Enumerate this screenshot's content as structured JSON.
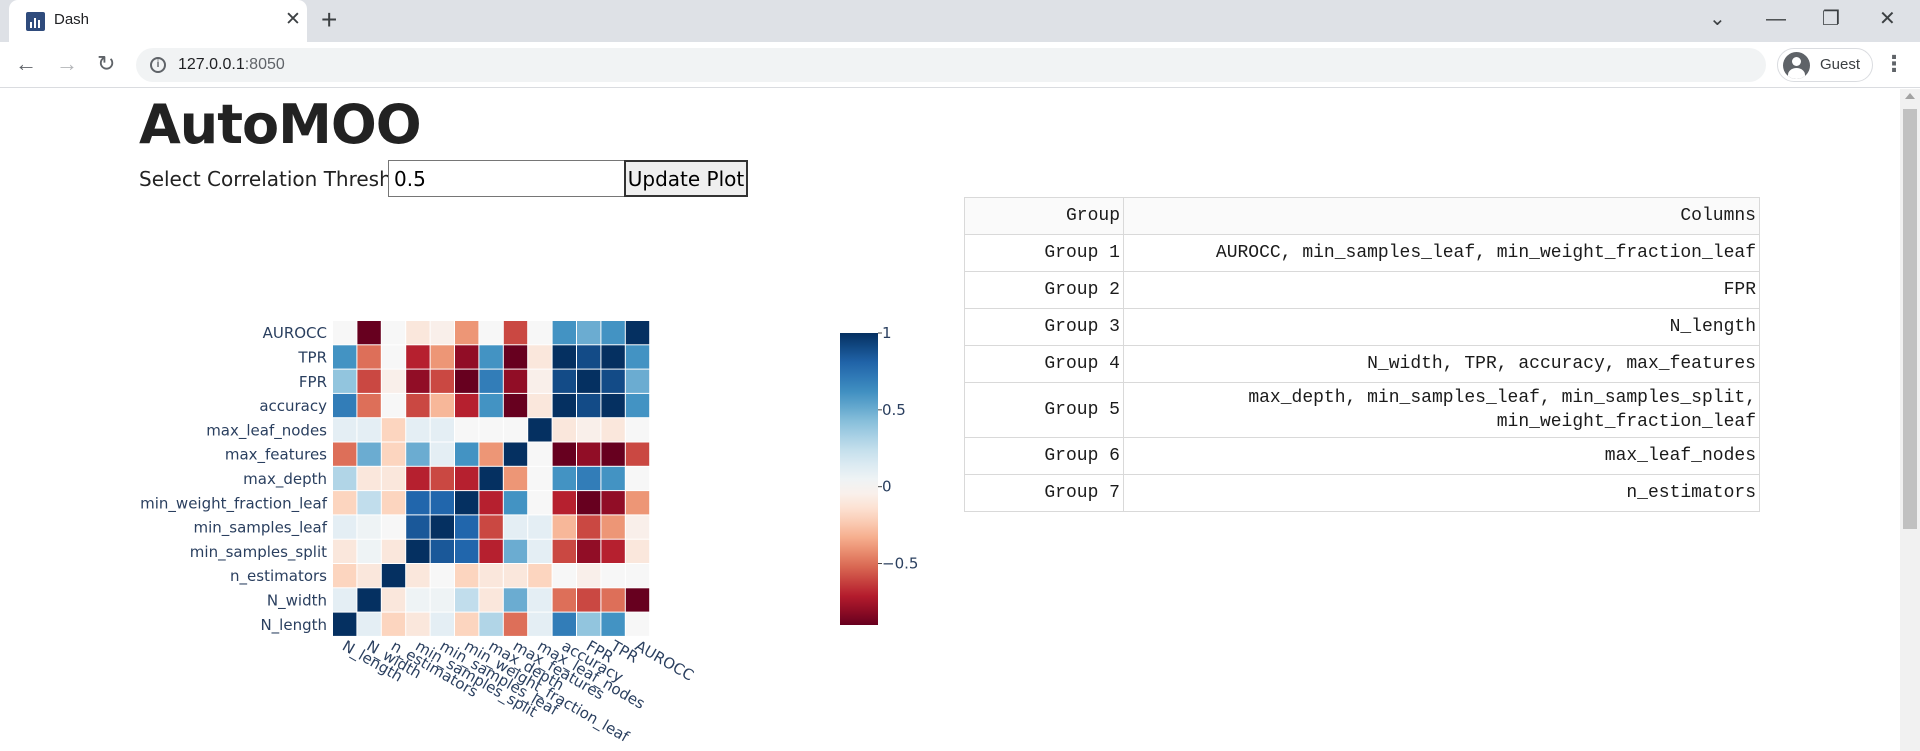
{
  "browser": {
    "tab_title": "Dash",
    "tab_close": "✕",
    "new_tab": "+",
    "url_host": "127.0.0.1",
    "url_port": ":8050",
    "profile_name": "Guest",
    "menu": "⋮",
    "back": "←",
    "forward": "→",
    "reload": "↻",
    "win_chevron": "⌄",
    "win_minimize": "—",
    "win_restore": "❐",
    "win_close": "✕"
  },
  "app": {
    "title": "AutoMOO",
    "threshold_label": "Select Correlation Threshold",
    "threshold_value": "0.5",
    "update_label": "Update Plot"
  },
  "table": {
    "headers": [
      "Group",
      "Columns"
    ],
    "rows": [
      {
        "group": "Group 1",
        "columns": "AUROCC, min_samples_leaf, min_weight_fraction_leaf"
      },
      {
        "group": "Group 2",
        "columns": "FPR"
      },
      {
        "group": "Group 3",
        "columns": "N_length"
      },
      {
        "group": "Group 4",
        "columns": "N_width, TPR, accuracy, max_features"
      },
      {
        "group": "Group 5",
        "columns": "max_depth, min_samples_leaf, min_samples_split,",
        "columns_line2": "min_weight_fraction_leaf"
      },
      {
        "group": "Group 6",
        "columns": "max_leaf_nodes"
      },
      {
        "group": "Group 7",
        "columns": "n_estimators"
      }
    ]
  },
  "chart_data": {
    "type": "heatmap",
    "colorscale": "RdBu",
    "zrange": [
      -0.9,
      1
    ],
    "colorbar_ticks": [
      "1",
      "0.5",
      "0",
      "−0.5"
    ],
    "colorbar_tick_values": [
      1,
      0.5,
      0,
      -0.5
    ],
    "x": [
      "N_length",
      "N_width",
      "n_estimators",
      "min_samples_split",
      "min_samples_leaf",
      "min_weight_fraction_leaf",
      "max_depth",
      "max_features",
      "max_leaf_nodes",
      "accuracy",
      "FPR",
      "TPR",
      "AUROCC"
    ],
    "y": [
      "N_length",
      "N_width",
      "n_estimators",
      "min_samples_split",
      "min_samples_leaf",
      "min_weight_fraction_leaf",
      "max_depth",
      "max_features",
      "max_leaf_nodes",
      "accuracy",
      "FPR",
      "TPR",
      "AUROCC"
    ],
    "z": [
      [
        1.0,
        0.1,
        -0.2,
        -0.1,
        0.1,
        -0.2,
        0.3,
        -0.5,
        0.1,
        0.7,
        0.4,
        0.6,
        0.0
      ],
      [
        0.1,
        1.0,
        -0.1,
        0.05,
        0.05,
        0.25,
        -0.1,
        0.5,
        0.1,
        -0.5,
        -0.6,
        -0.5,
        -0.9
      ],
      [
        -0.2,
        -0.1,
        1.0,
        -0.1,
        0.0,
        -0.2,
        -0.1,
        -0.1,
        -0.2,
        0.0,
        -0.05,
        0.0,
        0.0
      ],
      [
        -0.1,
        0.05,
        -0.1,
        1.0,
        0.85,
        0.8,
        -0.7,
        0.5,
        0.1,
        -0.6,
        -0.8,
        -0.7,
        -0.1
      ],
      [
        0.1,
        0.05,
        0.0,
        0.85,
        1.0,
        0.8,
        -0.6,
        0.1,
        0.1,
        -0.3,
        -0.6,
        -0.4,
        -0.05
      ],
      [
        -0.2,
        0.25,
        -0.2,
        0.8,
        0.8,
        1.0,
        -0.7,
        0.6,
        0.0,
        -0.7,
        -0.9,
        -0.8,
        -0.4
      ],
      [
        0.3,
        -0.1,
        -0.1,
        -0.7,
        -0.6,
        -0.7,
        1.0,
        -0.4,
        0.0,
        0.6,
        0.7,
        0.6,
        0.0
      ],
      [
        -0.5,
        0.5,
        -0.2,
        0.5,
        0.1,
        0.6,
        -0.4,
        1.0,
        0.0,
        -0.9,
        -0.8,
        -0.9,
        -0.6
      ],
      [
        0.1,
        0.1,
        -0.2,
        0.1,
        0.1,
        0.0,
        0.0,
        0.0,
        1.0,
        -0.1,
        -0.05,
        -0.1,
        0.0
      ],
      [
        0.7,
        -0.5,
        0.0,
        -0.6,
        -0.3,
        -0.7,
        0.6,
        -0.9,
        -0.1,
        1.0,
        0.9,
        1.0,
        0.6
      ],
      [
        0.4,
        -0.6,
        -0.05,
        -0.8,
        -0.6,
        -0.9,
        0.7,
        -0.8,
        -0.05,
        0.9,
        1.0,
        0.9,
        0.5
      ],
      [
        0.6,
        -0.5,
        0.0,
        -0.7,
        -0.4,
        -0.8,
        0.6,
        -0.9,
        -0.1,
        1.0,
        0.9,
        1.0,
        0.6
      ],
      [
        0.0,
        -0.9,
        0.0,
        -0.1,
        -0.05,
        -0.4,
        0.0,
        -0.6,
        0.0,
        0.6,
        0.5,
        0.6,
        1.0
      ]
    ]
  }
}
